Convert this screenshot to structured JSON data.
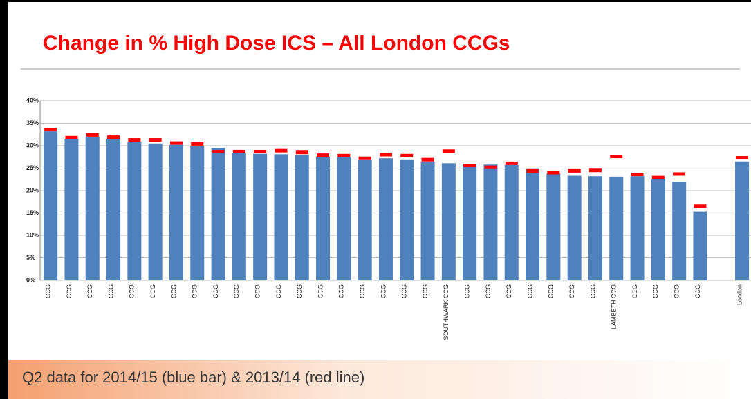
{
  "chart_data": {
    "type": "bar",
    "title": "Change in % High Dose ICS – All London CCGs",
    "footnote": "Q2 data for 2014/15 (blue bar) & 2013/14 (red line)",
    "categories": [
      "CCG",
      "CCG",
      "CCG",
      "CCG",
      "CCG",
      "CCG",
      "CCG",
      "CCG",
      "CCG",
      "CCG",
      "CCG",
      "CCG",
      "CCG",
      "CCG",
      "CCG",
      "CCG",
      "CCG",
      "CCG",
      "CCG",
      "SOUTHWARK CCG",
      "CCG",
      "CCG",
      "CCG",
      "CCG",
      "CCG",
      "CCG",
      "CCG",
      "LAMBETH CCG",
      "CCG",
      "CCG",
      "CCG",
      "CCG",
      null,
      "London"
    ],
    "series": [
      {
        "style": "bar",
        "color": "#4f81bd",
        "values": [
          33.2,
          31.5,
          32.0,
          31.6,
          30.8,
          30.5,
          30.2,
          30.0,
          29.5,
          28.3,
          28.2,
          28.1,
          28.0,
          27.5,
          27.4,
          26.8,
          27.2,
          26.8,
          26.5,
          26.1,
          26.0,
          25.8,
          25.7,
          24.8,
          23.8,
          23.3,
          23.2,
          23.1,
          23.2,
          22.5,
          22.0,
          15.3,
          null,
          26.5
        ]
      },
      {
        "style": "dash",
        "color": "#ff0000",
        "values": [
          33.6,
          31.8,
          32.4,
          31.9,
          31.3,
          31.3,
          30.6,
          30.4,
          28.7,
          28.7,
          28.7,
          28.9,
          28.5,
          27.9,
          27.8,
          27.2,
          28.0,
          27.8,
          26.9,
          28.8,
          25.6,
          25.2,
          26.1,
          24.4,
          24.0,
          24.4,
          24.5,
          27.6,
          23.6,
          22.9,
          23.7,
          16.5,
          null,
          27.3
        ]
      }
    ],
    "ylim": [
      0,
      40
    ],
    "yticks": [
      {
        "value": 0,
        "label": "0%"
      },
      {
        "value": 5,
        "label": "5%"
      },
      {
        "value": 10,
        "label": "10%"
      },
      {
        "value": 15,
        "label": "15%"
      },
      {
        "value": 20,
        "label": "20%"
      },
      {
        "value": 25,
        "label": "25%"
      },
      {
        "value": 30,
        "label": "30%"
      },
      {
        "value": 35,
        "label": "35%"
      },
      {
        "value": 40,
        "label": "40%"
      }
    ],
    "grid": true
  }
}
